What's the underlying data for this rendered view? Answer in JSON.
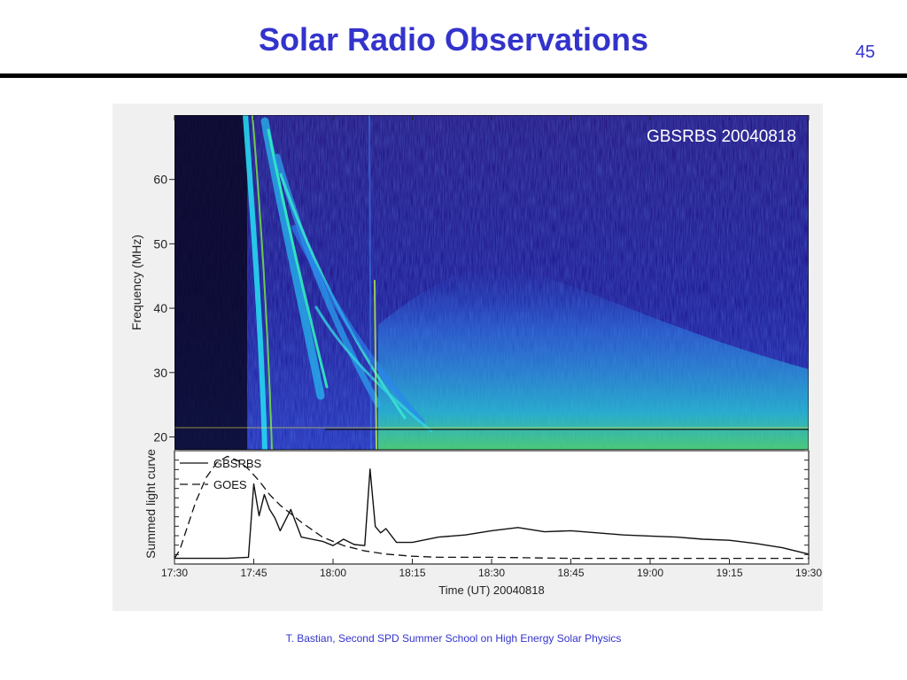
{
  "slide": {
    "title": "Solar Radio Observations",
    "page_number": "45",
    "footer": "T. Bastian, Second SPD Summer School on High Energy Solar Physics"
  },
  "chart_data": [
    {
      "type": "heatmap",
      "title": "GBSRBS 20040818",
      "ylabel": "Frequency (MHz)",
      "y_ticks": [
        "20",
        "30",
        "40",
        "50",
        "60"
      ],
      "ylim": [
        18,
        70
      ],
      "xlim": [
        "17:30",
        "19:30"
      ],
      "colors": {
        "background": "#1a0c6e",
        "low": "#2a1b9e",
        "mid": "#1e6bf0",
        "high": "#21e8d8",
        "peak": "#7cf23a"
      }
    },
    {
      "type": "line",
      "ylabel": "Summed light curve",
      "xlabel": "Time (UT) 20040818",
      "x_ticks": [
        "17:30",
        "17:45",
        "18:00",
        "18:15",
        "18:30",
        "18:45",
        "19:00",
        "19:15",
        "19:30"
      ],
      "legend": [
        "GBSRBS",
        "GOES"
      ],
      "legend_placement": "top-left",
      "series": [
        {
          "name": "GBSRBS",
          "style": "solid",
          "x": [
            "17:30",
            "17:40",
            "17:44",
            "17:45",
            "17:46",
            "17:47",
            "17:48",
            "17:49",
            "17:50",
            "17:52",
            "17:54",
            "17:56",
            "17:58",
            "18:00",
            "18:02",
            "18:04",
            "18:06",
            "18:07",
            "18:08",
            "18:09",
            "18:10",
            "18:12",
            "18:15",
            "18:20",
            "18:25",
            "18:30",
            "18:35",
            "18:40",
            "18:45",
            "18:50",
            "18:55",
            "19:00",
            "19:05",
            "19:10",
            "19:15",
            "19:20",
            "19:25",
            "19:30"
          ],
          "y": [
            0.02,
            0.02,
            0.03,
            0.72,
            0.42,
            0.62,
            0.48,
            0.4,
            0.28,
            0.48,
            0.22,
            0.2,
            0.18,
            0.14,
            0.2,
            0.15,
            0.14,
            0.86,
            0.32,
            0.26,
            0.3,
            0.17,
            0.17,
            0.22,
            0.24,
            0.28,
            0.31,
            0.27,
            0.28,
            0.26,
            0.24,
            0.23,
            0.22,
            0.2,
            0.19,
            0.16,
            0.12,
            0.06
          ]
        },
        {
          "name": "GOES",
          "style": "dashed",
          "x": [
            "17:30",
            "17:31",
            "17:32",
            "17:34",
            "17:36",
            "17:38",
            "17:40",
            "17:42",
            "17:44",
            "17:46",
            "17:48",
            "17:50",
            "17:54",
            "17:58",
            "18:02",
            "18:06",
            "18:10",
            "18:15",
            "18:20",
            "18:30",
            "18:45",
            "19:00",
            "19:15",
            "19:30"
          ],
          "y": [
            0.02,
            0.1,
            0.25,
            0.55,
            0.78,
            0.92,
            0.98,
            0.94,
            0.86,
            0.75,
            0.62,
            0.52,
            0.36,
            0.22,
            0.14,
            0.09,
            0.06,
            0.04,
            0.03,
            0.03,
            0.02,
            0.02,
            0.02,
            0.02
          ]
        }
      ]
    }
  ]
}
